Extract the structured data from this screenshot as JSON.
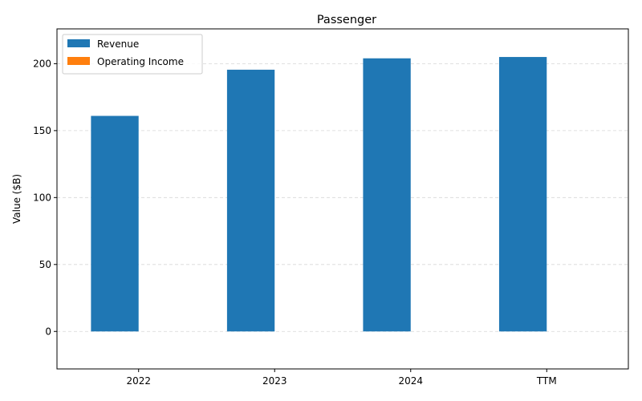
{
  "chart_data": {
    "type": "bar",
    "title": "Passenger",
    "xlabel": "",
    "ylabel": "Value ($B)",
    "categories": [
      "2022",
      "2023",
      "2024",
      "TTM"
    ],
    "series": [
      {
        "name": "Revenue",
        "color": "#1f77b4",
        "values": [
          161,
          195.5,
          204,
          205
        ]
      },
      {
        "name": "Operating Income",
        "color": "#ff7f0e",
        "values": [
          0,
          0,
          0,
          0
        ]
      }
    ],
    "ylim": [
      -28,
      226
    ],
    "yticks": [
      0,
      50,
      100,
      150,
      200
    ],
    "grid": "horizontal-dashed",
    "legend_position": "top-left"
  }
}
